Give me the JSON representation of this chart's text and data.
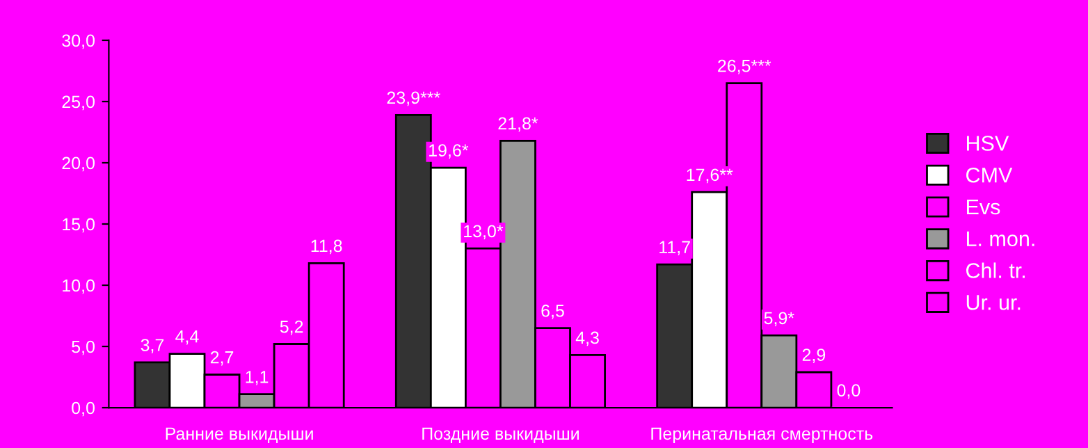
{
  "chart_data": {
    "type": "bar",
    "categories": [
      "Ранние выкидыши",
      "Поздние выкидыши",
      "Перинатальная смертность"
    ],
    "series": [
      {
        "name": "HSV",
        "color": "#333333",
        "values": [
          3.7,
          23.9,
          11.7
        ],
        "value_labels": [
          "3,7",
          "23,9***",
          "11,7"
        ]
      },
      {
        "name": "CMV",
        "color": "#ffffff",
        "values": [
          4.4,
          19.6,
          17.6
        ],
        "value_labels": [
          "4,4",
          "19,6*",
          "17,6**"
        ]
      },
      {
        "name": "Evs",
        "color": "#ff00ff",
        "values": [
          2.7,
          13.0,
          26.5
        ],
        "value_labels": [
          "2,7",
          "13,0*",
          "26,5***"
        ]
      },
      {
        "name": "L. mon.",
        "color": "#999999",
        "values": [
          1.1,
          21.8,
          5.9
        ],
        "value_labels": [
          "1,1",
          "21,8*",
          "5,9*"
        ]
      },
      {
        "name": "Chl. tr.",
        "color": "#ff00ff",
        "values": [
          5.2,
          6.5,
          2.9
        ],
        "value_labels": [
          "5,2",
          "6,5",
          "2,9"
        ]
      },
      {
        "name": "Ur. ur.",
        "color": "#ff00ff",
        "values": [
          11.8,
          4.3,
          0.0
        ],
        "value_labels": [
          "11,8",
          "4,3",
          "0,0"
        ]
      }
    ],
    "ylim": [
      0,
      30
    ],
    "yticks": [
      {
        "value": 0,
        "label": "0,0"
      },
      {
        "value": 5,
        "label": "5,0"
      },
      {
        "value": 10,
        "label": "10,0"
      },
      {
        "value": 15,
        "label": "15,0"
      },
      {
        "value": 20,
        "label": "20,0"
      },
      {
        "value": 25,
        "label": "25,0"
      },
      {
        "value": 30,
        "label": "30,0"
      }
    ],
    "legend": "right",
    "grid": false
  }
}
